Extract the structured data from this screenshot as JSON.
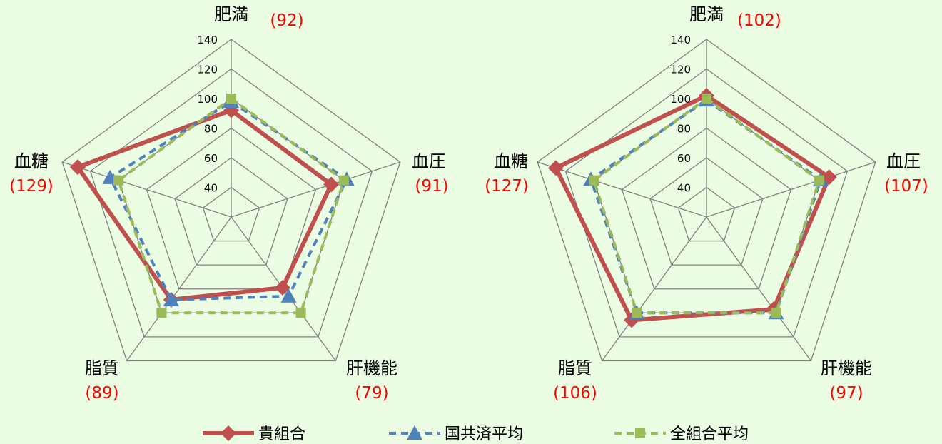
{
  "chart_data": [
    {
      "type": "radar",
      "axes": [
        "肥満",
        "血圧",
        "肝機能",
        "脂質",
        "血糖"
      ],
      "axis_values": [
        "(92)",
        "(91)",
        "(79)",
        "(89)",
        "(129)"
      ],
      "ticks": [
        40,
        60,
        80,
        100,
        120,
        140
      ],
      "tick_labels": [
        "40",
        "60",
        "80",
        "100",
        "120",
        "140"
      ],
      "rlim": [
        20,
        140
      ],
      "series": [
        {
          "name": "貴組合",
          "values": [
            92,
            91,
            79,
            89,
            129
          ]
        },
        {
          "name": "国共済平均",
          "values": [
            98,
            102,
            86,
            89,
            106
          ]
        },
        {
          "name": "全組合平均",
          "values": [
            100,
            100,
            100,
            100,
            100
          ]
        }
      ]
    },
    {
      "type": "radar",
      "axes": [
        "肥満",
        "血圧",
        "肝機能",
        "脂質",
        "血糖"
      ],
      "axis_values": [
        "(102)",
        "(107)",
        "(97)",
        "(106)",
        "(127)"
      ],
      "ticks": [
        40,
        60,
        80,
        100,
        120,
        140
      ],
      "tick_labels": [
        "40",
        "60",
        "80",
        "100",
        "120",
        "140"
      ],
      "rlim": [
        20,
        140
      ],
      "series": [
        {
          "name": "貴組合",
          "values": [
            102,
            107,
            97,
            106,
            127
          ]
        },
        {
          "name": "国共済平均",
          "values": [
            99,
            101,
            100,
            100,
            102
          ]
        },
        {
          "name": "全組合平均",
          "values": [
            100,
            100,
            100,
            100,
            100
          ]
        }
      ]
    }
  ],
  "legend": [
    {
      "label": "貴組合",
      "color": "#c0504d",
      "marker": "diamond",
      "dash": "solid"
    },
    {
      "label": "国共済平均",
      "color": "#4f81bd",
      "marker": "triangle",
      "dash": "dashed"
    },
    {
      "label": "全組合平均",
      "color": "#9bbb59",
      "marker": "square",
      "dash": "dashed"
    }
  ],
  "colors": {
    "background": "#ebfde2",
    "grid": "#808080",
    "value_text": "#ff0000"
  }
}
